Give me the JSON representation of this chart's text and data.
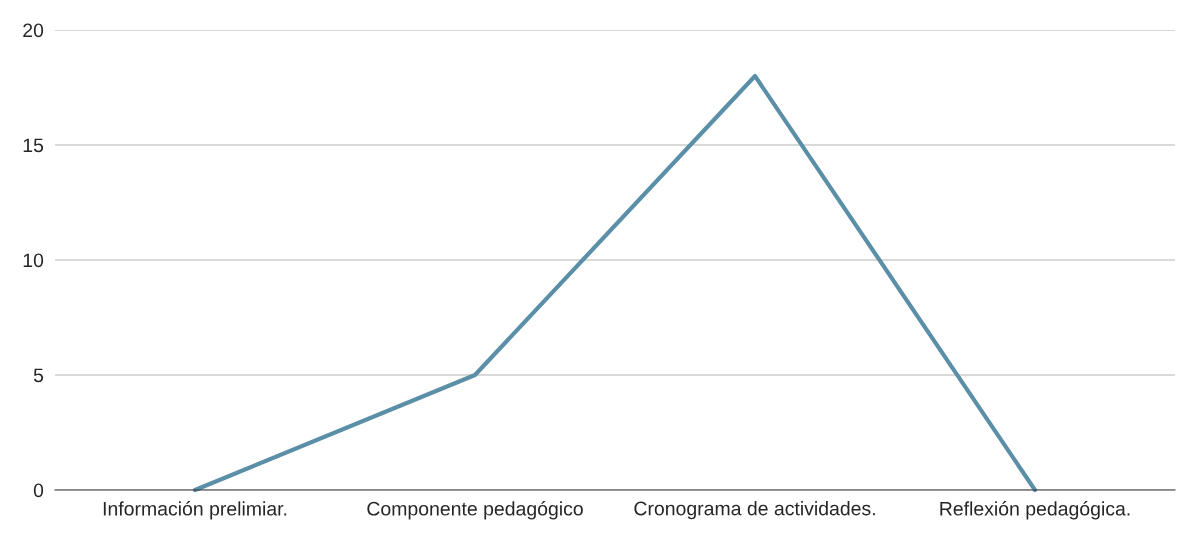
{
  "chart_data": {
    "type": "line",
    "categories": [
      "Información prelimiar.",
      "Componente pedagógico",
      "Cronograma de actividades.",
      "Reflexión pedagógica."
    ],
    "series": [
      {
        "color": "#5b8fa8",
        "values": [
          0,
          5,
          18,
          0
        ]
      }
    ],
    "ylim": [
      0,
      20
    ],
    "yticks": [
      0,
      5,
      10,
      15,
      20
    ],
    "grid": "y",
    "marker": "none",
    "line_style": "solid"
  }
}
